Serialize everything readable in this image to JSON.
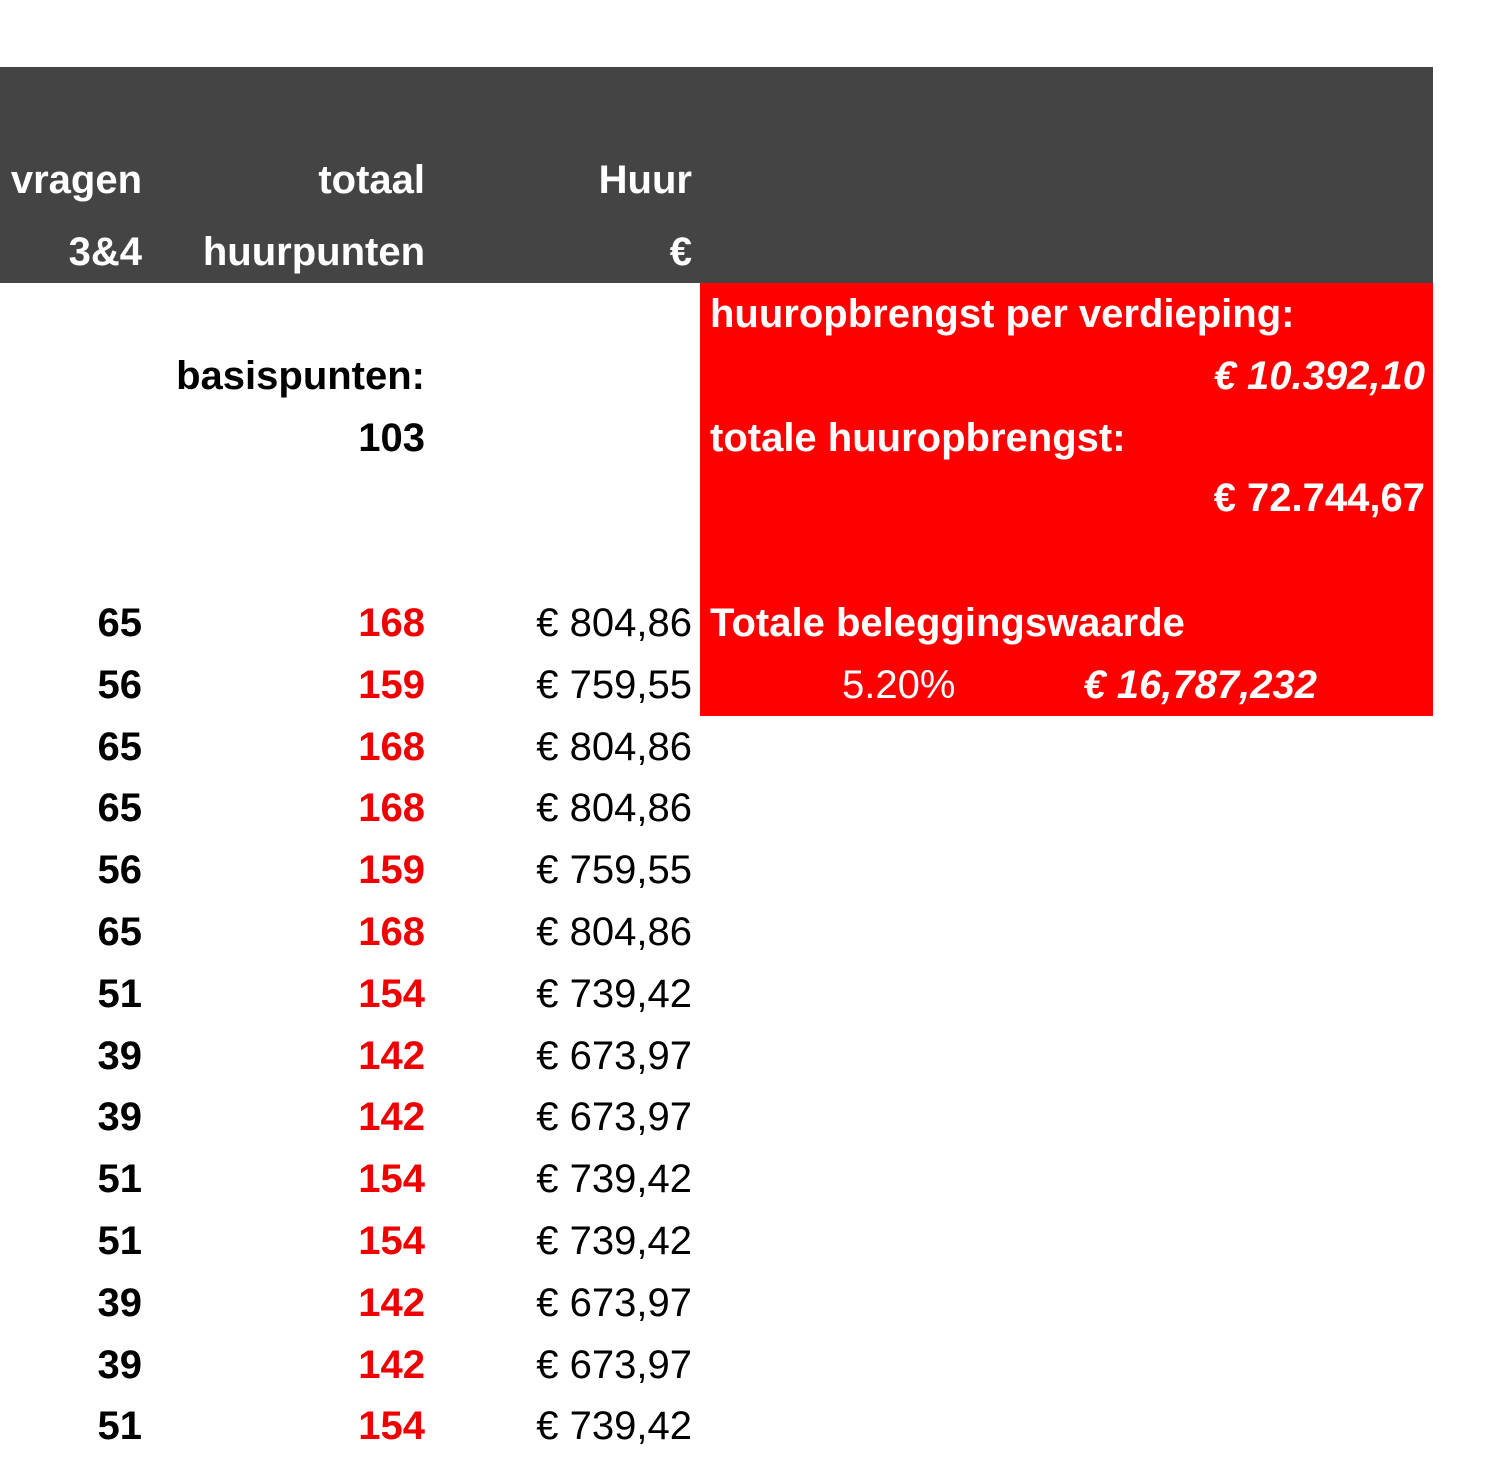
{
  "header": {
    "columns": [
      {
        "line1": "vragen",
        "line2": "3&4"
      },
      {
        "line1": "totaal",
        "line2": "huurpunten"
      },
      {
        "line1": "Huur",
        "line2": "€"
      }
    ]
  },
  "basis": {
    "label": "basispunten:",
    "value": 103
  },
  "summary": {
    "per_floor_label": "huuropbrengst per verdieping:",
    "per_floor_value": "€ 10.392,10",
    "total_label": "totale huuropbrengst:",
    "total_value": "€ 72.744,67",
    "investment_label": "Totale beleggingswaarde",
    "yield": "5.20%",
    "investment_value": "€ 16,787,232"
  },
  "table": {
    "rows": [
      [
        65,
        168,
        "€ 804,86"
      ],
      [
        56,
        159,
        "€ 759,55"
      ],
      [
        65,
        168,
        "€ 804,86"
      ],
      [
        65,
        168,
        "€ 804,86"
      ],
      [
        56,
        159,
        "€ 759,55"
      ],
      [
        65,
        168,
        "€ 804,86"
      ],
      [
        51,
        154,
        "€ 739,42"
      ],
      [
        39,
        142,
        "€ 673,97"
      ],
      [
        39,
        142,
        "€ 673,97"
      ],
      [
        51,
        154,
        "€ 739,42"
      ],
      [
        51,
        154,
        "€ 739,42"
      ],
      [
        39,
        142,
        "€ 673,97"
      ],
      [
        39,
        142,
        "€ 673,97"
      ],
      [
        51,
        154,
        "€ 739,42"
      ]
    ]
  }
}
